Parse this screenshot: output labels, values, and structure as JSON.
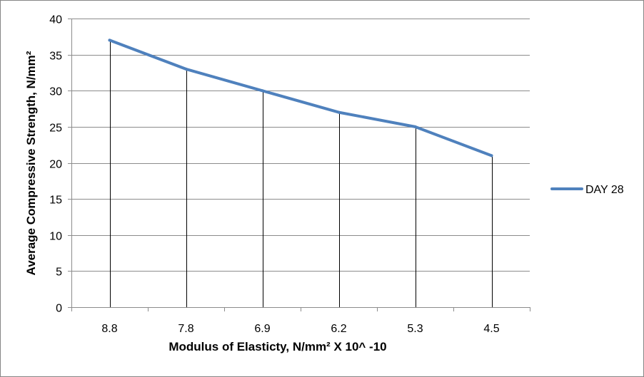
{
  "chart_data": {
    "type": "line",
    "title": "",
    "xlabel": "Modulus of Elasticty, N/mm² X 10^ -10",
    "ylabel": "Average Compressive Strength, N/mm²",
    "categories": [
      "8.8",
      "7.8",
      "6.9",
      "6.2",
      "5.3",
      "4.5"
    ],
    "series": [
      {
        "name": "DAY 28",
        "values": [
          37,
          33,
          30,
          27,
          25,
          21
        ],
        "color": "#4f81bd"
      }
    ],
    "ylim": [
      0,
      40
    ],
    "yticks": [
      "0",
      "5",
      "10",
      "15",
      "20",
      "25",
      "30",
      "35",
      "40"
    ],
    "grid": true,
    "drop_lines": true,
    "legend": "right"
  }
}
